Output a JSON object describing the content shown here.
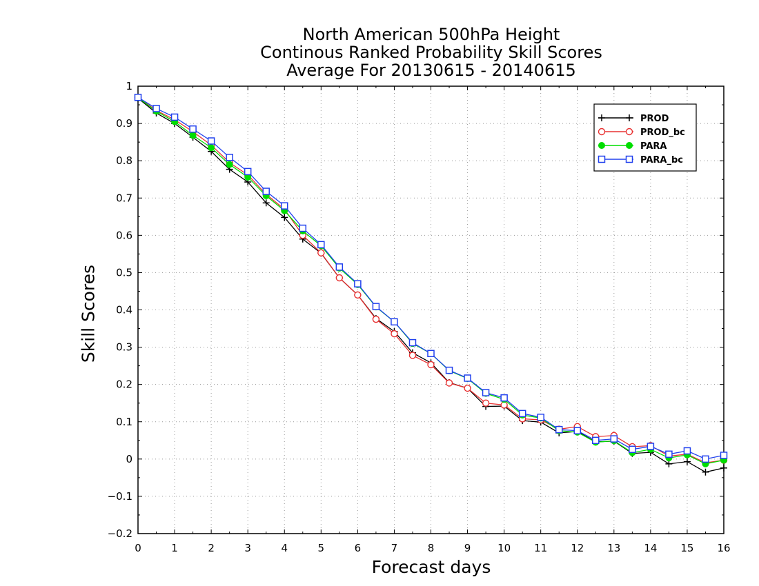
{
  "chart_data": {
    "type": "line",
    "title": [
      "North American 500hPa Height",
      "Continous Ranked Probability Skill Scores",
      "Average For 20130615 - 20140615"
    ],
    "xlabel": "Forecast days",
    "ylabel": "Skill Scores",
    "xlim": [
      0,
      16
    ],
    "ylim": [
      -0.2,
      1
    ],
    "xticks": [
      0,
      1,
      2,
      3,
      4,
      5,
      6,
      7,
      8,
      9,
      10,
      11,
      12,
      13,
      14,
      15,
      16
    ],
    "yticks": [
      -0.2,
      -0.1,
      0,
      0.1,
      0.2,
      0.3,
      0.4,
      0.5,
      0.6,
      0.7,
      0.8,
      0.9,
      1
    ],
    "ytick_labels": [
      "−0.2",
      "−0.1",
      "0",
      "0.1",
      "0.2",
      "0.3",
      "0.4",
      "0.5",
      "0.6",
      "0.7",
      "0.8",
      "0.9",
      "1"
    ],
    "grid": true,
    "legend_position": "top-right",
    "x": [
      0,
      0.5,
      1,
      1.5,
      2,
      2.5,
      3,
      3.5,
      4,
      4.5,
      5,
      5.5,
      6,
      6.5,
      7,
      7.5,
      8,
      8.5,
      9,
      9.5,
      10,
      10.5,
      11,
      11.5,
      12,
      12.5,
      13,
      13.5,
      14,
      14.5,
      15,
      15.5,
      16
    ],
    "series": [
      {
        "name": "PROD",
        "color": "#000000",
        "marker": "plus",
        "values": [
          0.968,
          0.928,
          0.9,
          0.863,
          0.825,
          0.777,
          0.743,
          0.687,
          0.648,
          0.59,
          0.552,
          0.486,
          0.44,
          0.377,
          0.342,
          0.285,
          0.258,
          0.205,
          0.19,
          0.141,
          0.142,
          0.103,
          0.099,
          0.07,
          0.074,
          0.046,
          0.048,
          0.015,
          0.018,
          -0.013,
          -0.007,
          -0.035,
          -0.024
        ]
      },
      {
        "name": "PROD_bc",
        "color": "#e83030",
        "marker": "circle",
        "values": [
          0.97,
          0.935,
          0.91,
          0.878,
          0.842,
          0.795,
          0.762,
          0.71,
          0.67,
          0.6,
          0.553,
          0.486,
          0.44,
          0.375,
          0.336,
          0.278,
          0.253,
          0.204,
          0.19,
          0.15,
          0.145,
          0.108,
          0.105,
          0.08,
          0.087,
          0.06,
          0.063,
          0.033,
          0.036,
          0.008,
          0.013,
          -0.01,
          -0.003
        ]
      },
      {
        "name": "PARA",
        "color": "#00dd00",
        "marker": "filled-circle",
        "values": [
          0.969,
          0.933,
          0.905,
          0.868,
          0.835,
          0.79,
          0.756,
          0.706,
          0.666,
          0.612,
          0.572,
          0.512,
          0.468,
          0.408,
          0.368,
          0.31,
          0.283,
          0.237,
          0.216,
          0.176,
          0.16,
          0.118,
          0.11,
          0.076,
          0.072,
          0.045,
          0.049,
          0.017,
          0.026,
          0.003,
          0.011,
          -0.013,
          -0.003
        ]
      },
      {
        "name": "PARA_bc",
        "color": "#2040ee",
        "marker": "square",
        "values": [
          0.97,
          0.94,
          0.917,
          0.885,
          0.853,
          0.809,
          0.771,
          0.718,
          0.679,
          0.619,
          0.575,
          0.515,
          0.47,
          0.409,
          0.368,
          0.312,
          0.283,
          0.238,
          0.217,
          0.178,
          0.164,
          0.122,
          0.112,
          0.079,
          0.076,
          0.05,
          0.054,
          0.026,
          0.034,
          0.013,
          0.022,
          0.0,
          0.01
        ]
      }
    ]
  }
}
